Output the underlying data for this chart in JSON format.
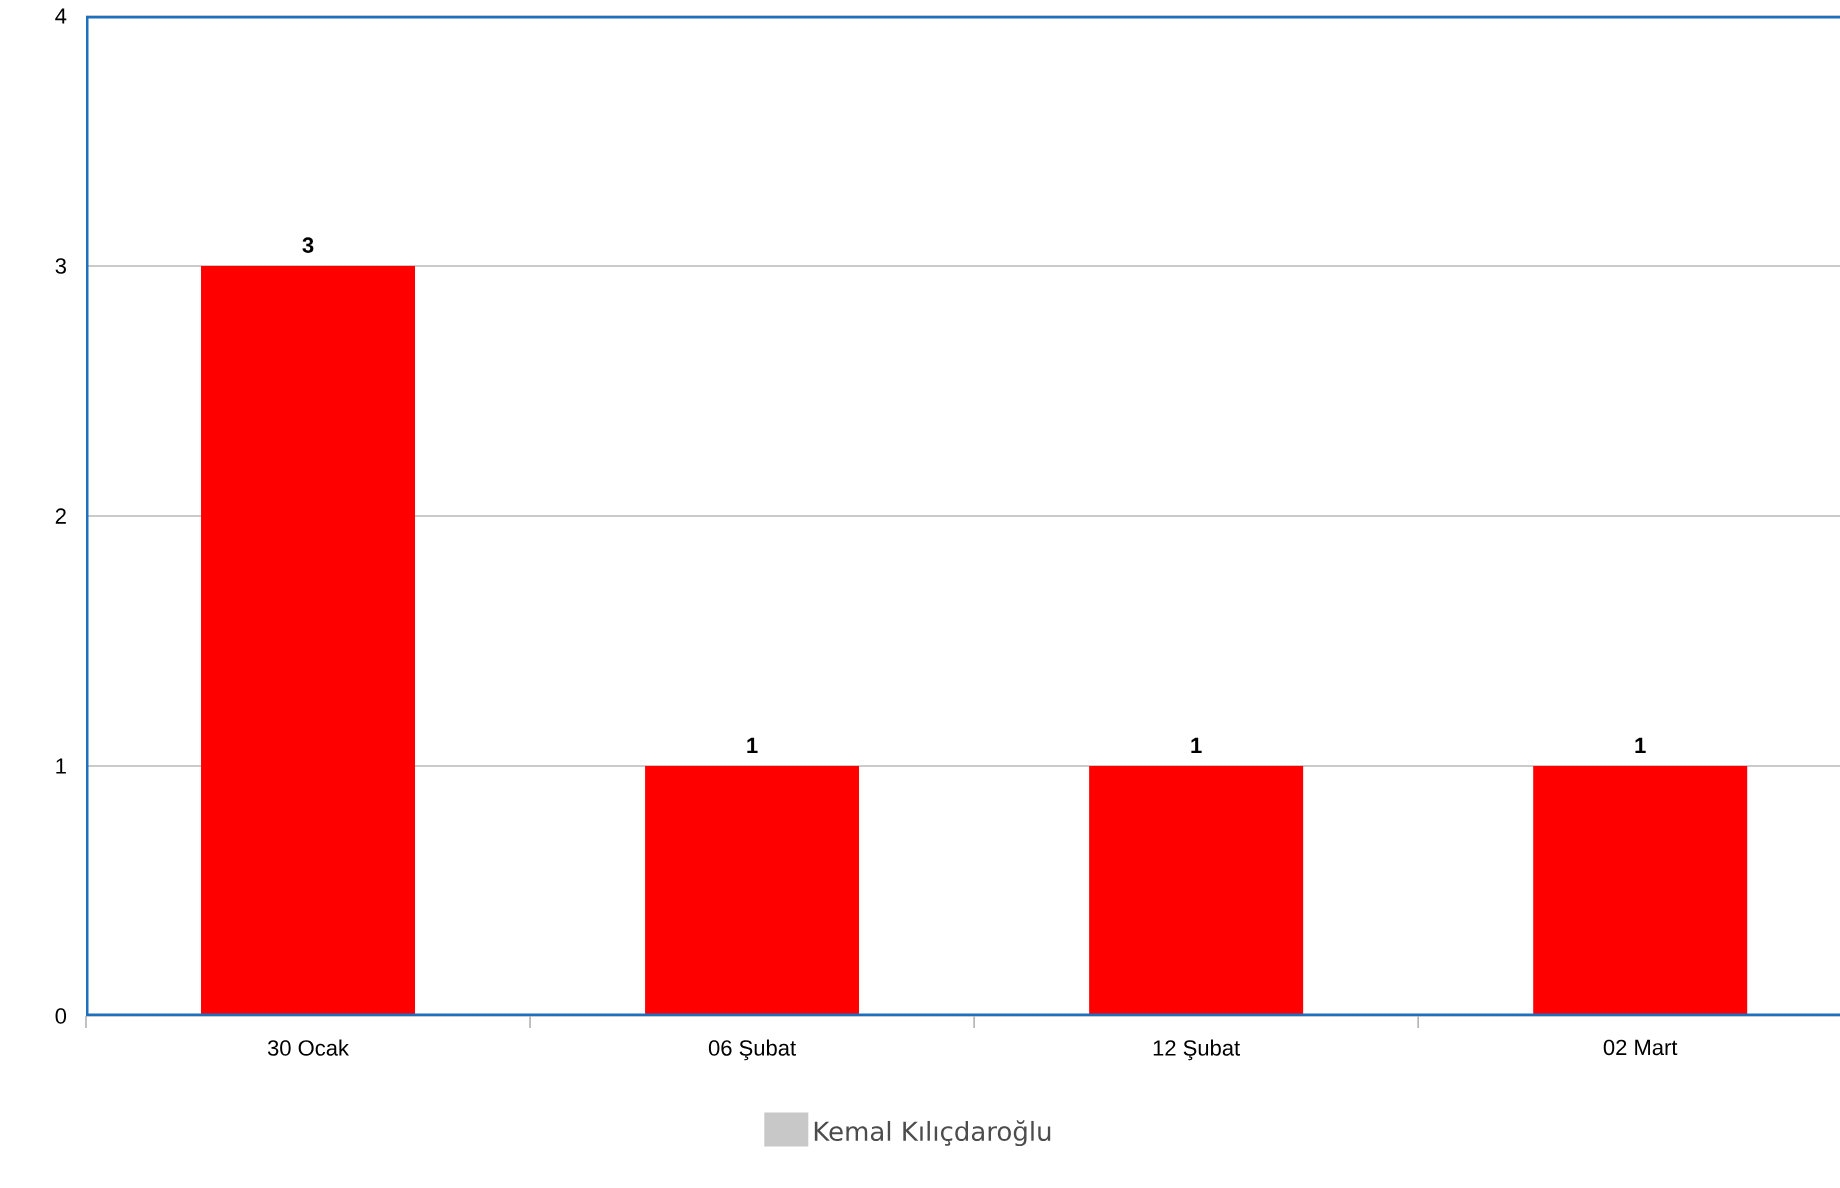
{
  "chart_data": {
    "type": "bar",
    "categories": [
      "30 Ocak",
      "06 Şubat",
      "12 Şubat",
      "02 Mart"
    ],
    "series": [
      {
        "name": "Kemal Kılıçdaroğlu",
        "color": "#c8c8c8",
        "colors": [
          "#ff0000",
          "#ff0000",
          "#ff0000",
          "#ff0000"
        ],
        "values": [
          3,
          1,
          1,
          1
        ]
      }
    ],
    "ylim": [
      0,
      4
    ],
    "yticks": [
      0,
      1,
      2,
      3,
      4
    ],
    "grid": "y",
    "legend": "bottom",
    "data_labels": true
  }
}
